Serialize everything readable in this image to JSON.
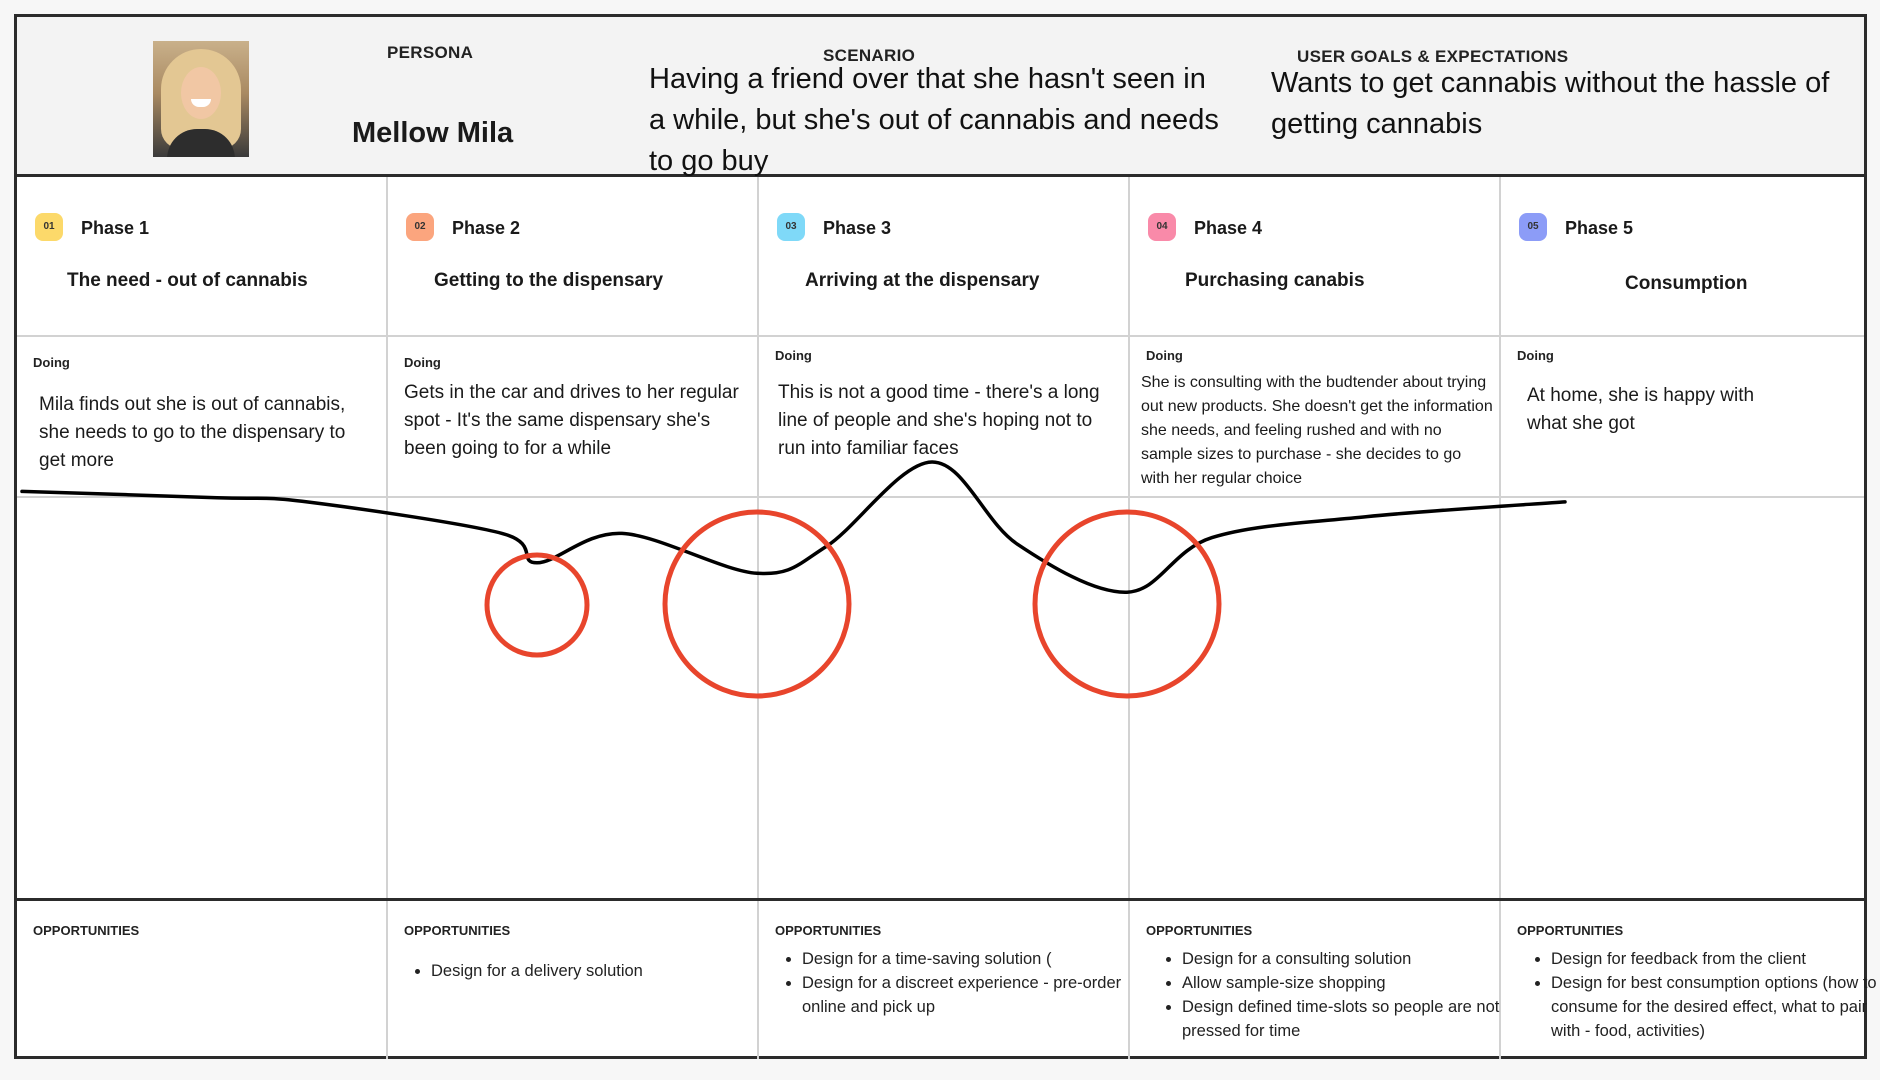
{
  "header": {
    "persona_label": "PERSONA",
    "persona_name": "Mellow Mila",
    "scenario_label": "SCENARIO",
    "scenario_text": "Having a friend over that she hasn't seen in a while, but she's out of cannabis and needs to go buy",
    "goals_label": "USER GOALS & EXPECTATIONS",
    "goals_text": "Wants to get cannabis without the hassle of getting cannabis"
  },
  "phases": [
    {
      "num": "01",
      "label": "Phase 1",
      "title": "The need - out of cannabis",
      "doing_label": "Doing",
      "doing": "Mila finds out she is out of cannabis, she needs to go to the dispensary to get more",
      "opp_label": "OPPORTUNITIES",
      "opportunities": []
    },
    {
      "num": "02",
      "label": "Phase 2",
      "title": "Getting to the dispensary",
      "doing_label": "Doing",
      "doing": "Gets in the car and drives to her regular spot - It's the same dispensary she's been going to for a while",
      "opp_label": "OPPORTUNITIES",
      "opportunities": [
        "Design for a delivery solution"
      ]
    },
    {
      "num": "03",
      "label": "Phase 3",
      "title": "Arriving at the dispensary",
      "doing_label": "Doing",
      "doing": "This is not a good time - there's a long line of people and she's hoping not to run into familiar faces",
      "opp_label": "OPPORTUNITIES",
      "opportunities": [
        "Design for a time-saving solution (",
        "Design for a discreet experience - pre-order online and pick up"
      ]
    },
    {
      "num": "04",
      "label": "Phase 4",
      "title": "Purchasing canabis",
      "doing_label": "Doing",
      "doing": "She is consulting with the budtender about trying out new products. She doesn't get the information she needs, and feeling rushed and with no sample sizes to purchase - she decides to go with her regular choice",
      "opp_label": "OPPORTUNITIES",
      "opportunities": [
        "Design for a consulting solution",
        "Allow sample-size shopping",
        "Design defined time-slots so people are not pressed for time"
      ]
    },
    {
      "num": "05",
      "label": "Phase 5",
      "title": "Consumption",
      "doing_label": "Doing",
      "doing": "At home, she is happy with what she got",
      "opp_label": "OPPORTUNITIES",
      "opportunities": [
        "Design for feedback from the client",
        "Design for best consumption options (how to consume for the desired effect, what to pair with - food, activities)"
      ]
    }
  ],
  "colors": {
    "badge_1": "#fcd96a",
    "badge_2": "#fba57e",
    "badge_3": "#7fd9f8",
    "badge_4": "#f98aa9",
    "badge_5": "#8c9cf7",
    "curve": "#000000",
    "pain_circle": "#e8452c"
  },
  "emotion_curve": {
    "levels": [
      0.86,
      0.83,
      0.81,
      0.66,
      0.52,
      0.66,
      0.47,
      0.6,
      1.0,
      0.61,
      0.38,
      0.64,
      0.74,
      0.81
    ],
    "pain_points": [
      {
        "phase": 2,
        "size": "small"
      },
      {
        "phase": 3,
        "size": "large"
      },
      {
        "phase": 4,
        "size": "large"
      }
    ]
  }
}
